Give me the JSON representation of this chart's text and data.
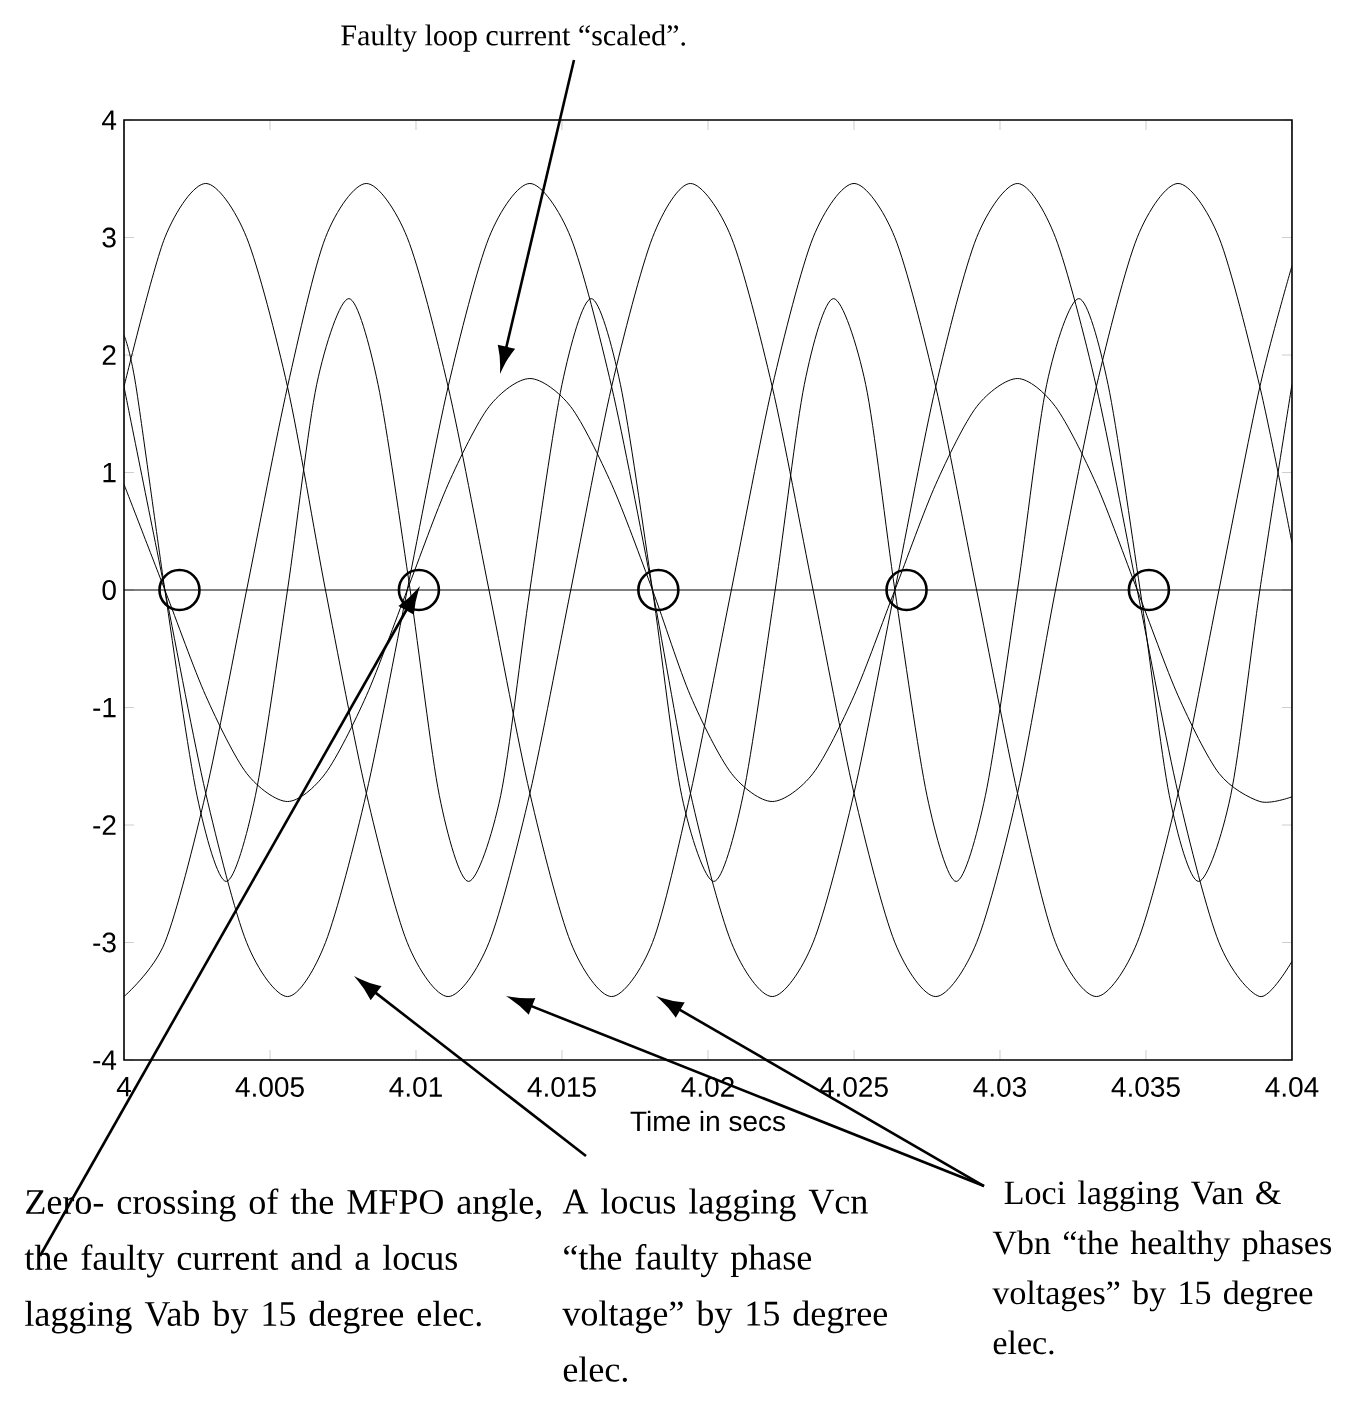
{
  "chart_data": {
    "type": "line",
    "xlabel": "Time in secs",
    "x": [
      4.0,
      4.0014,
      4.0028,
      4.0042,
      4.0056,
      4.0069,
      4.0083,
      4.0097,
      4.0111,
      4.0125,
      4.0139,
      4.0153,
      4.0167,
      4.0181,
      4.0194,
      4.0208,
      4.0222,
      4.0236,
      4.025,
      4.0264,
      4.0278,
      4.0292,
      4.0306,
      4.0319,
      4.0333,
      4.0347,
      4.0361,
      4.0375,
      4.0389,
      4.04
    ],
    "series": [
      {
        "color": "#000000",
        "values": [
          1.73,
          3.0,
          3.46,
          3.0,
          1.73,
          0,
          -1.73,
          -3.0,
          -3.46,
          -3.0,
          -1.73,
          0,
          1.73,
          3.0,
          3.46,
          3.0,
          1.73,
          0,
          -1.73,
          -3.0,
          -3.46,
          -3.0,
          -1.73,
          0,
          1.73,
          3.0,
          3.46,
          3.0,
          1.73,
          0.4
        ]
      },
      {
        "color": "#000000",
        "values": [
          -3.46,
          -3.0,
          -1.73,
          0,
          1.73,
          3.0,
          3.46,
          3.0,
          1.73,
          0,
          -1.73,
          -3.0,
          -3.46,
          -3.0,
          -1.73,
          0,
          1.73,
          3.0,
          3.46,
          3.0,
          1.73,
          0,
          -1.73,
          -3.0,
          -3.46,
          -3.0,
          -1.73,
          0,
          1.73,
          2.76
        ]
      },
      {
        "color": "#000000",
        "values": [
          1.73,
          0,
          -1.73,
          -3.0,
          -3.46,
          -3.0,
          -1.73,
          0,
          1.73,
          3.0,
          3.46,
          3.0,
          1.73,
          0,
          -1.73,
          -3.0,
          -3.46,
          -3.0,
          -1.73,
          0,
          1.73,
          3.0,
          3.46,
          3.0,
          1.73,
          0,
          -1.73,
          -3.0,
          -3.46,
          -3.16
        ]
      },
      {
        "color": "#000000",
        "values": [
          0.9,
          0,
          -0.9,
          -1.56,
          -1.8,
          -1.56,
          -0.9,
          0,
          0.9,
          1.56,
          1.8,
          1.56,
          0.9,
          0,
          -0.9,
          -1.56,
          -1.8,
          -1.56,
          -0.9,
          0,
          0.9,
          1.56,
          1.8,
          1.56,
          0.9,
          0,
          -0.9,
          -1.56,
          -1.8,
          -1.76
        ]
      },
      {
        "color": "#000000",
        "x": [
          4.0,
          4.0004,
          4.0014,
          4.0025,
          4.0035,
          4.0045,
          4.0056,
          4.0066,
          4.0077,
          4.0087,
          4.0098,
          4.0108,
          4.0118,
          4.0129,
          4.0139,
          4.015,
          4.016,
          4.017,
          4.0181,
          4.0191,
          4.0202,
          4.0212,
          4.0223,
          4.0233,
          4.0243,
          4.0254,
          4.0264,
          4.0275,
          4.0285,
          4.0295,
          4.0306,
          4.0316,
          4.0327,
          4.0337,
          4.0348,
          4.0358,
          4.0368,
          4.0379,
          4.0389,
          4.04
        ],
        "values": [
          2.17,
          1.75,
          0,
          -1.75,
          -2.48,
          -1.75,
          0,
          1.75,
          2.48,
          1.75,
          0,
          -1.75,
          -2.48,
          -1.75,
          0,
          1.75,
          2.48,
          1.75,
          0,
          -1.75,
          -2.48,
          -1.75,
          0,
          1.75,
          2.48,
          1.75,
          0,
          -1.75,
          -2.48,
          -1.75,
          0,
          1.75,
          2.48,
          1.75,
          0,
          -1.75,
          -2.48,
          -1.75,
          0,
          1.75
        ]
      },
      {
        "type": "scatter",
        "marker": "circle",
        "color": "#000000",
        "x": [
          4.0019,
          4.0101,
          4.0183,
          4.0268,
          4.0351
        ],
        "values": [
          0,
          0,
          0,
          0,
          0
        ]
      }
    ],
    "xlim": [
      4,
      4.04
    ],
    "ylim": [
      -4,
      4
    ],
    "xticks": [
      4,
      4.005,
      4.01,
      4.015,
      4.02,
      4.025,
      4.03,
      4.035,
      4.04
    ],
    "yticks": [
      -4,
      -3,
      -2,
      -1,
      0,
      1,
      2,
      3,
      4
    ],
    "ref_lines": [
      {
        "axis": "y",
        "value": 0,
        "color": "#000000"
      }
    ],
    "line_style": "solid",
    "annotations": [
      "Faulty loop current “scaled”.",
      "Zero- crossing of the MFPO angle, the faulty current and a locus lagging Vab by 15 degree elec.",
      "A locus lagging Vcn “the faulty phase voltage” by 15 degree elec.",
      " Loci lagging Van & Vbn “the healthy phases voltages” by 15 degree elec."
    ]
  }
}
